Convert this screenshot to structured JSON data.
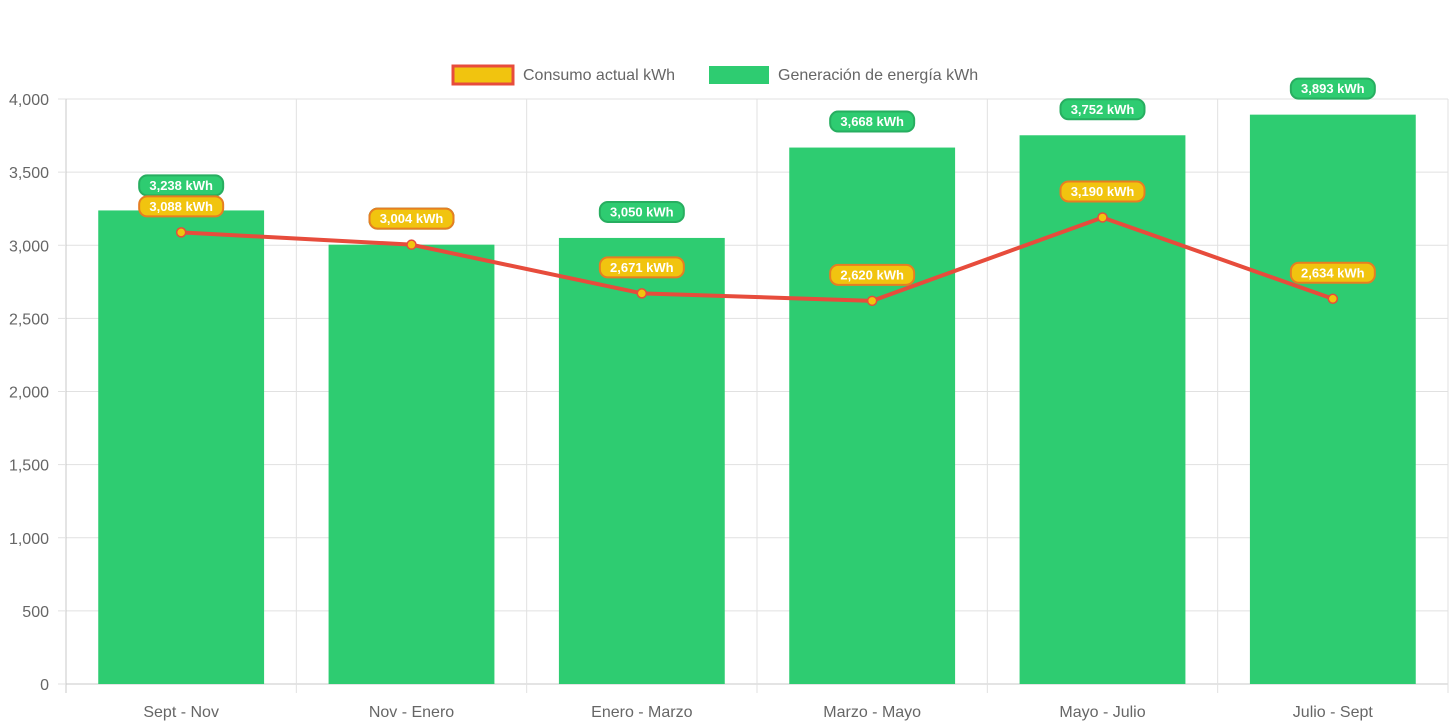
{
  "chart_data": {
    "type": "bar",
    "categories": [
      "Sept - Nov",
      "Nov - Enero",
      "Enero - Marzo",
      "Marzo - Mayo",
      "Mayo - Julio",
      "Julio - Sept"
    ],
    "series": [
      {
        "name": "Generación de energía kWh",
        "type": "bar",
        "values": [
          3238,
          3004,
          3050,
          3668,
          3752,
          3893
        ],
        "labels": [
          "3,238 kWh",
          "3,004 kWh",
          "3,050 kWh",
          "3,668 kWh",
          "3,752 kWh",
          "3,893 kWh"
        ],
        "color": "#2ecc71"
      },
      {
        "name": "Consumo actual kWh",
        "type": "line",
        "values": [
          3088,
          3004,
          2671,
          2620,
          3190,
          2634
        ],
        "labels": [
          "3,088 kWh",
          "3,004 kWh",
          "2,671 kWh",
          "2,620 kWh",
          "3,190 kWh",
          "2,634 kWh"
        ],
        "color": "#e74c3c",
        "point_color": "#f1c40f"
      }
    ],
    "legend": [
      {
        "label": "Consumo actual kWh",
        "fill": "#f1c40f",
        "border": "#e74c3c"
      },
      {
        "label": "Generación de energía kWh",
        "fill": "#2ecc71",
        "border": "#2ecc71"
      }
    ],
    "legend_position": "top",
    "ylim": [
      0,
      4000
    ],
    "yticks": [
      0,
      500,
      1000,
      1500,
      2000,
      2500,
      3000,
      3500,
      4000
    ],
    "ytick_labels": [
      "0",
      "500",
      "1,000",
      "1,500",
      "2,000",
      "2,500",
      "3,000",
      "3,500",
      "4,000"
    ],
    "grid": true,
    "title": "",
    "xlabel": "",
    "ylabel": ""
  }
}
